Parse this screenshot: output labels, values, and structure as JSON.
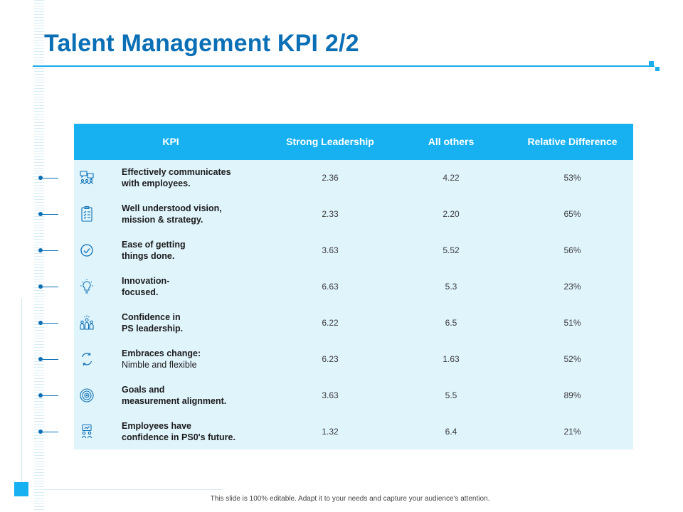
{
  "slide": {
    "title": "Talent Management KPI 2/2",
    "footer": "This slide is 100% editable.  Adapt it to your needs and capture your audience's attention."
  },
  "colors": {
    "title": "#0a6fb5",
    "accent": "#17b1f1",
    "table_bg": "#e0f4fc",
    "marker": "#0a6fb5"
  },
  "table": {
    "headers": [
      "KPI",
      "Strong Leadership",
      "All others",
      "Relative Difference"
    ],
    "rows": [
      {
        "icon": "chat-users-icon",
        "line1": "Effectively communicates",
        "line2": "with employees.",
        "line2_bold": true,
        "strong": "2.36",
        "others": "4.22",
        "diff": "53%"
      },
      {
        "icon": "clipboard-checklist-icon",
        "line1": "Well understood vision,",
        "line2": "mission & strategy.",
        "line2_bold": true,
        "strong": "2.33",
        "others": "2.20",
        "diff": "65%"
      },
      {
        "icon": "check-circle-icon",
        "line1": "Ease of getting",
        "line2": "things done.",
        "line2_bold": true,
        "strong": "3.63",
        "others": "5.52",
        "diff": "56%"
      },
      {
        "icon": "lightbulb-icon",
        "line1": "Innovation-",
        "line2": "focused.",
        "line2_bold": true,
        "strong": "6.63",
        "others": "5.3",
        "diff": "23%"
      },
      {
        "icon": "team-leader-icon",
        "line1": "Confidence in",
        "line2": "PS leadership.",
        "line2_bold": true,
        "strong": "6.22",
        "others": "6.5",
        "diff": "51%"
      },
      {
        "icon": "refresh-cycle-icon",
        "line1": "Embraces change:",
        "line2": "Nimble and  flexible",
        "line2_bold": false,
        "strong": "6.23",
        "others": "1.63",
        "diff": "52%"
      },
      {
        "icon": "target-icon",
        "line1": "Goals and",
        "line2": "measurement  alignment.",
        "line2_bold": true,
        "strong": "3.63",
        "others": "5.5",
        "diff": "89%"
      },
      {
        "icon": "presentation-team-icon",
        "line1": "Employees have",
        "line2": "confidence in PS0's future.",
        "line2_bold": true,
        "strong": "1.32",
        "others": "6.4",
        "diff": "21%"
      }
    ]
  }
}
